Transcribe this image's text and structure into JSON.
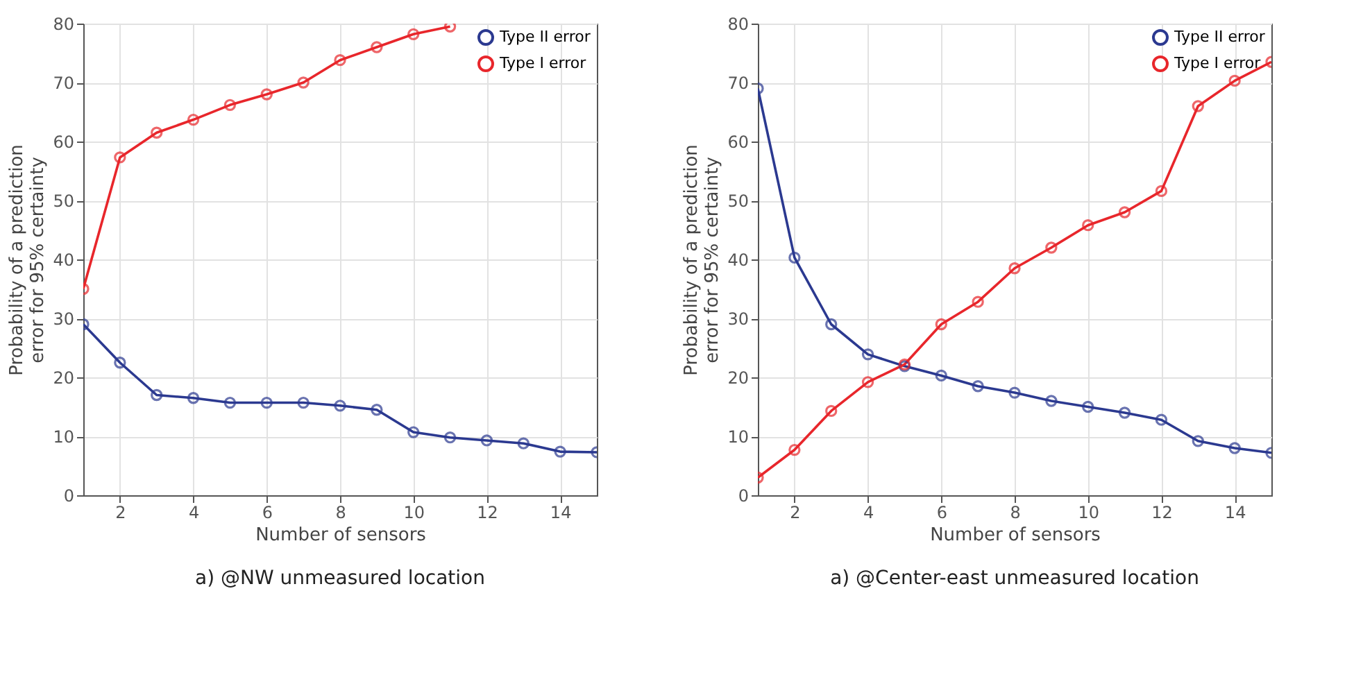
{
  "chart_data": [
    {
      "type": "line",
      "title": "a) @NW unmeasured location",
      "xlabel": "Number of sensors",
      "ylabel": "Probability of a prediction error for 95% certainty",
      "x": [
        1,
        2,
        3,
        4,
        5,
        6,
        7,
        8,
        9,
        10,
        11,
        12,
        13,
        14,
        15
      ],
      "xlim": [
        1,
        15
      ],
      "xticks": [
        2,
        4,
        6,
        8,
        10,
        12,
        14
      ],
      "ylim": [
        0,
        80
      ],
      "yticks": [
        0,
        10,
        20,
        30,
        40,
        50,
        60,
        70,
        80
      ],
      "grid": true,
      "legend": "top right",
      "marker": "circle",
      "line_style": "solid",
      "series": [
        {
          "name": "Type II error",
          "color": "#2b3990",
          "values": [
            29,
            22.5,
            17,
            16.5,
            15.7,
            15.7,
            15.7,
            15.2,
            14.5,
            10.7,
            9.8,
            9.3,
            8.8,
            7.4,
            7.3
          ]
        },
        {
          "name": "Type I error",
          "color": "#e8262b",
          "values": [
            35,
            57.3,
            61.5,
            63.7,
            66.2,
            68,
            70,
            73.8,
            76,
            78.2,
            79.5,
            null,
            null,
            null,
            null
          ]
        }
      ]
    },
    {
      "type": "line",
      "title": "a) @Center-east unmeasured location",
      "xlabel": "Number of sensors",
      "ylabel": "Probability of a prediction error for 95% certainty",
      "x": [
        1,
        2,
        3,
        4,
        5,
        6,
        7,
        8,
        9,
        10,
        11,
        12,
        13,
        14,
        15
      ],
      "xlim": [
        1,
        15
      ],
      "xticks": [
        2,
        4,
        6,
        8,
        10,
        12,
        14
      ],
      "ylim": [
        0,
        80
      ],
      "yticks": [
        0,
        10,
        20,
        30,
        40,
        50,
        60,
        70,
        80
      ],
      "grid": true,
      "legend": "top right",
      "marker": "circle",
      "line_style": "solid",
      "series": [
        {
          "name": "Type II error",
          "color": "#2b3990",
          "values": [
            69,
            40.3,
            29,
            23.9,
            21.9,
            20.3,
            18.5,
            17.4,
            16,
            15,
            14,
            12.8,
            9.2,
            8,
            7.2
          ]
        },
        {
          "name": "Type I error",
          "color": "#e8262b",
          "values": [
            3,
            7.7,
            14.3,
            19.2,
            22.2,
            29,
            32.8,
            38.5,
            42,
            45.8,
            48,
            51.6,
            66,
            70.3,
            73.5
          ]
        }
      ]
    }
  ]
}
